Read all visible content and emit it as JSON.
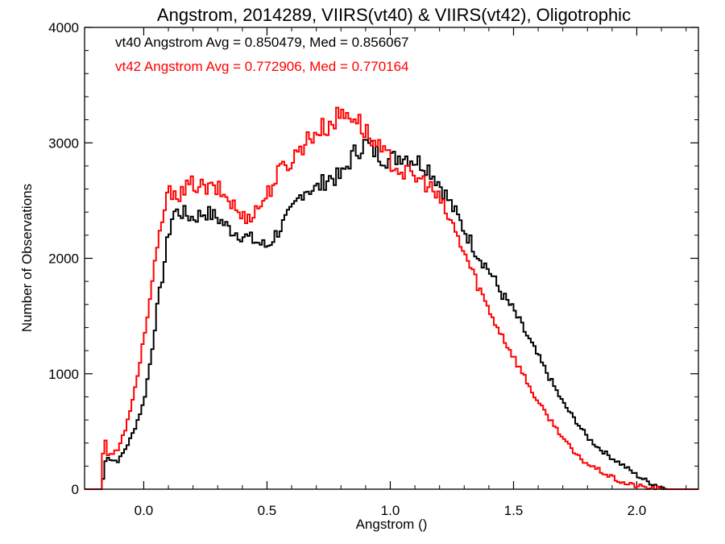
{
  "chart_data": {
    "type": "line",
    "title": "Angstrom, 2014289, VIIRS(vt40) & VIIRS(vt42), Oligotrophic",
    "xlabel": "Angstrom ()",
    "ylabel": "Number of Observations",
    "xlim": [
      -0.24,
      2.25
    ],
    "ylim": [
      0,
      4000
    ],
    "x_ticks": [
      0.0,
      0.5,
      1.0,
      1.5,
      2.0
    ],
    "x_tick_labels": [
      "0.0",
      "0.5",
      "1.0",
      "1.5",
      "2.0"
    ],
    "y_ticks": [
      0,
      1000,
      2000,
      3000,
      4000
    ],
    "y_tick_labels": [
      "0",
      "1000",
      "2000",
      "3000",
      "4000"
    ],
    "grid": false,
    "step": true,
    "annotations": [
      {
        "text": "vt40 Angstrom Avg = 0.850479, Med = 0.856067",
        "color": "#000000"
      },
      {
        "text": "vt42 Angstrom Avg = 0.772906, Med = 0.770164",
        "color": "#ff0000"
      }
    ],
    "series": [
      {
        "color": "#000000",
        "x": [
          -0.25,
          -0.17,
          -0.16,
          -0.15,
          -0.13,
          -0.1,
          -0.05,
          0.0,
          0.03,
          0.05,
          0.08,
          0.1,
          0.12,
          0.15,
          0.2,
          0.25,
          0.3,
          0.35,
          0.4,
          0.45,
          0.5,
          0.55,
          0.6,
          0.65,
          0.7,
          0.75,
          0.8,
          0.85,
          0.9,
          0.95,
          1.0,
          1.05,
          1.1,
          1.15,
          1.2,
          1.25,
          1.3,
          1.35,
          1.4,
          1.45,
          1.5,
          1.55,
          1.6,
          1.65,
          1.7,
          1.75,
          1.8,
          1.85,
          1.9,
          1.95,
          2.0,
          2.05,
          2.1,
          2.13,
          2.15,
          2.25
        ],
        "values": [
          0,
          0,
          180,
          300,
          250,
          250,
          450,
          750,
          1150,
          1500,
          1900,
          2200,
          2400,
          2400,
          2350,
          2400,
          2350,
          2250,
          2200,
          2150,
          2100,
          2250,
          2400,
          2600,
          2600,
          2700,
          2700,
          2900,
          3000,
          2900,
          2850,
          2900,
          2850,
          2800,
          2650,
          2450,
          2250,
          2050,
          1900,
          1700,
          1550,
          1350,
          1150,
          950,
          750,
          600,
          450,
          350,
          270,
          200,
          120,
          60,
          20,
          0,
          0,
          0
        ]
      },
      {
        "color": "#ff0000",
        "x": [
          -0.25,
          -0.17,
          -0.16,
          -0.15,
          -0.14,
          -0.13,
          -0.1,
          -0.05,
          0.0,
          0.03,
          0.05,
          0.08,
          0.1,
          0.12,
          0.15,
          0.2,
          0.25,
          0.3,
          0.35,
          0.4,
          0.45,
          0.5,
          0.55,
          0.6,
          0.65,
          0.7,
          0.75,
          0.8,
          0.85,
          0.9,
          0.95,
          1.0,
          1.05,
          1.1,
          1.15,
          1.2,
          1.25,
          1.3,
          1.35,
          1.4,
          1.45,
          1.5,
          1.55,
          1.6,
          1.65,
          1.7,
          1.75,
          1.8,
          1.85,
          1.9,
          1.95,
          2.0,
          2.05,
          2.1,
          2.15,
          2.25
        ],
        "values": [
          0,
          0,
          600,
          280,
          320,
          300,
          350,
          700,
          1300,
          1700,
          2000,
          2400,
          2550,
          2600,
          2550,
          2650,
          2600,
          2600,
          2500,
          2350,
          2400,
          2550,
          2750,
          2850,
          3000,
          3100,
          3150,
          3250,
          3250,
          3100,
          2950,
          2850,
          2750,
          2700,
          2650,
          2500,
          2300,
          2050,
          1800,
          1550,
          1350,
          1150,
          950,
          750,
          600,
          450,
          300,
          220,
          160,
          100,
          50,
          30,
          10,
          0,
          0,
          0
        ]
      }
    ]
  }
}
